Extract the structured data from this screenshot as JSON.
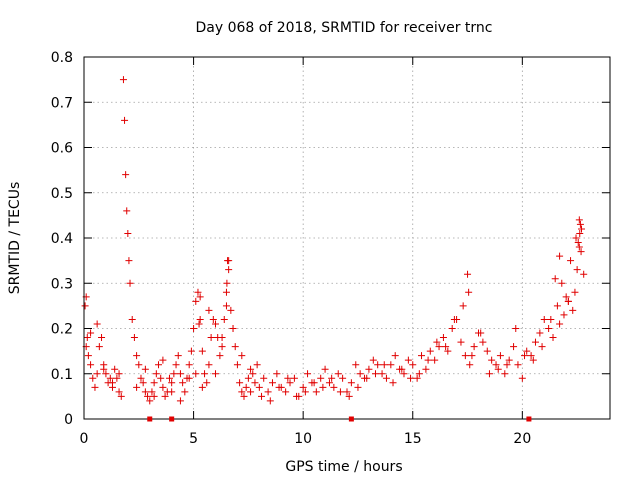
{
  "chart_data": {
    "type": "scatter",
    "title": "Day 068 of 2018, SRMTID for receiver trnc",
    "xlabel": "GPS time / hours",
    "ylabel": "SRMTID / TECUs",
    "xlim": [
      0,
      24
    ],
    "ylim": [
      0,
      0.8
    ],
    "xticks": [
      0,
      5,
      10,
      15,
      20
    ],
    "yticks": [
      0,
      0.1,
      0.2,
      0.3,
      0.4,
      0.5,
      0.6,
      0.7,
      0.8
    ],
    "grid": true,
    "marker": "+",
    "color": "#e00000",
    "series": [
      {
        "name": "SRMTID",
        "x": [
          0.05,
          0.1,
          0.15,
          0.2,
          0.3,
          0.4,
          0.5,
          0.6,
          0.7,
          0.8,
          0.9,
          1.0,
          1.1,
          1.2,
          1.3,
          1.4,
          1.5,
          1.6,
          1.7,
          1.8,
          1.85,
          1.9,
          1.95,
          2.0,
          2.05,
          2.1,
          2.2,
          2.3,
          2.4,
          2.5,
          2.6,
          2.7,
          2.8,
          2.9,
          3.0,
          3.1,
          3.2,
          3.3,
          3.4,
          3.5,
          3.6,
          3.7,
          3.8,
          3.9,
          4.0,
          4.1,
          4.2,
          4.3,
          4.4,
          4.5,
          4.6,
          4.7,
          4.8,
          4.9,
          5.0,
          5.1,
          5.2,
          5.3,
          5.4,
          5.5,
          5.6,
          5.7,
          5.8,
          5.9,
          6.0,
          6.1,
          6.2,
          6.3,
          6.4,
          6.5,
          6.55,
          6.6,
          6.7,
          6.8,
          6.9,
          7.0,
          7.1,
          7.2,
          7.3,
          7.4,
          7.5,
          7.6,
          7.7,
          7.8,
          7.9,
          8.0,
          8.2,
          8.4,
          8.6,
          8.8,
          9.0,
          9.2,
          9.4,
          9.6,
          9.8,
          10.0,
          10.2,
          10.4,
          10.6,
          10.8,
          11.0,
          11.2,
          11.4,
          11.6,
          11.8,
          12.0,
          12.2,
          12.4,
          12.6,
          12.8,
          13.0,
          13.2,
          13.4,
          13.6,
          13.8,
          14.0,
          14.2,
          14.4,
          14.6,
          14.8,
          15.0,
          15.2,
          15.4,
          15.6,
          15.8,
          16.0,
          16.2,
          16.4,
          16.6,
          16.8,
          17.0,
          17.2,
          17.4,
          17.6,
          17.8,
          18.0,
          18.2,
          18.4,
          18.6,
          18.8,
          19.0,
          19.2,
          19.4,
          19.6,
          19.8,
          20.0,
          20.2,
          20.4,
          20.6,
          20.8,
          21.0,
          21.2,
          21.4,
          21.6,
          21.8,
          22.0,
          22.2,
          22.4,
          22.6,
          22.7,
          22.8,
          0.1,
          0.3,
          0.6,
          0.9,
          1.3,
          1.6,
          2.4,
          2.8,
          3.2,
          3.6,
          4.0,
          4.4,
          4.8,
          5.1,
          5.4,
          5.7,
          6.0,
          6.3,
          6.8,
          7.2,
          7.6,
          8.1,
          8.5,
          8.9,
          9.3,
          9.7,
          10.1,
          10.5,
          10.9,
          11.3,
          11.7,
          12.1,
          12.5,
          12.9,
          13.3,
          13.7,
          14.1,
          14.5,
          14.9,
          15.3,
          15.7,
          16.1,
          16.5,
          16.9,
          17.3,
          17.7,
          18.1,
          18.5,
          18.9,
          19.3,
          19.7,
          20.1,
          20.5,
          20.9,
          21.3,
          21.7,
          22.1,
          22.5,
          22.65,
          5.25,
          5.3,
          6.5,
          6.52,
          6.6,
          17.5,
          17.55,
          21.5,
          21.7,
          21.9,
          22.1,
          22.3,
          22.45,
          22.55,
          22.6,
          22.62,
          22.68
        ],
        "y": [
          0.25,
          0.27,
          0.18,
          0.14,
          0.12,
          0.09,
          0.07,
          0.1,
          0.16,
          0.18,
          0.12,
          0.1,
          0.08,
          0.09,
          0.07,
          0.11,
          0.09,
          0.06,
          0.05,
          0.75,
          0.66,
          0.54,
          0.46,
          0.41,
          0.35,
          0.3,
          0.22,
          0.18,
          0.14,
          0.12,
          0.09,
          0.08,
          0.06,
          0.05,
          0.04,
          0.06,
          0.08,
          0.1,
          0.12,
          0.09,
          0.07,
          0.05,
          0.06,
          0.09,
          0.08,
          0.1,
          0.12,
          0.14,
          0.1,
          0.08,
          0.06,
          0.09,
          0.12,
          0.15,
          0.2,
          0.26,
          0.28,
          0.22,
          0.15,
          0.1,
          0.08,
          0.12,
          0.18,
          0.22,
          0.21,
          0.18,
          0.14,
          0.16,
          0.22,
          0.28,
          0.35,
          0.33,
          0.24,
          0.2,
          0.16,
          0.12,
          0.08,
          0.06,
          0.05,
          0.07,
          0.09,
          0.11,
          0.1,
          0.08,
          0.12,
          0.07,
          0.09,
          0.06,
          0.08,
          0.1,
          0.07,
          0.06,
          0.08,
          0.09,
          0.05,
          0.07,
          0.1,
          0.08,
          0.06,
          0.09,
          0.11,
          0.08,
          0.07,
          0.1,
          0.09,
          0.06,
          0.08,
          0.12,
          0.1,
          0.09,
          0.11,
          0.13,
          0.12,
          0.1,
          0.09,
          0.12,
          0.14,
          0.11,
          0.1,
          0.13,
          0.12,
          0.09,
          0.14,
          0.11,
          0.15,
          0.13,
          0.16,
          0.18,
          0.15,
          0.2,
          0.22,
          0.17,
          0.14,
          0.12,
          0.16,
          0.19,
          0.17,
          0.15,
          0.13,
          0.12,
          0.14,
          0.1,
          0.13,
          0.16,
          0.12,
          0.09,
          0.15,
          0.14,
          0.17,
          0.19,
          0.22,
          0.2,
          0.18,
          0.25,
          0.3,
          0.27,
          0.35,
          0.28,
          0.38,
          0.42,
          0.32,
          0.16,
          0.19,
          0.21,
          0.11,
          0.08,
          0.1,
          0.07,
          0.11,
          0.05,
          0.13,
          0.06,
          0.04,
          0.09,
          0.1,
          0.07,
          0.24,
          0.1,
          0.18,
          0.2,
          0.14,
          0.06,
          0.05,
          0.04,
          0.07,
          0.09,
          0.05,
          0.06,
          0.08,
          0.07,
          0.09,
          0.06,
          0.05,
          0.07,
          0.09,
          0.1,
          0.12,
          0.08,
          0.11,
          0.09,
          0.1,
          0.13,
          0.17,
          0.16,
          0.22,
          0.25,
          0.14,
          0.19,
          0.1,
          0.11,
          0.12,
          0.2,
          0.14,
          0.13,
          0.16,
          0.22,
          0.36,
          0.26,
          0.33,
          0.43,
          0.21,
          0.27,
          0.25,
          0.3,
          0.35,
          0.32,
          0.28,
          0.31,
          0.21,
          0.23,
          0.26,
          0.24,
          0.4,
          0.39,
          0.44,
          0.41,
          0.37
        ]
      }
    ],
    "axis_markers_x": [
      3.0,
      4.0,
      12.2,
      20.3
    ]
  }
}
